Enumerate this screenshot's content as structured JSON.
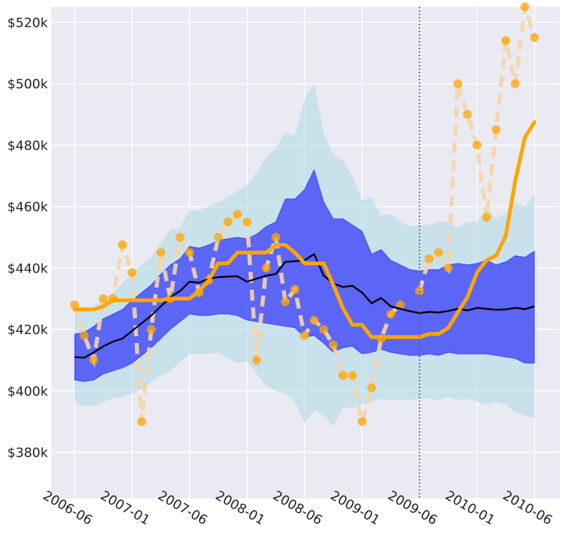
{
  "chart_data": {
    "type": "line",
    "title": "",
    "xlabel": "",
    "ylabel": "",
    "ylim": [
      365000,
      525000
    ],
    "y_ticks": [
      {
        "value": 380000,
        "label": "$380k"
      },
      {
        "value": 400000,
        "label": "$400k"
      },
      {
        "value": 420000,
        "label": "$420k"
      },
      {
        "value": 440000,
        "label": "$440k"
      },
      {
        "value": 460000,
        "label": "$460k"
      },
      {
        "value": 480000,
        "label": "$480k"
      },
      {
        "value": 500000,
        "label": "$500k"
      },
      {
        "value": 520000,
        "label": "$520k"
      }
    ],
    "x_ticks": [
      {
        "index": 0,
        "label": "2006-06"
      },
      {
        "index": 6,
        "label": "2007-01"
      },
      {
        "index": 12,
        "label": "2007-06"
      },
      {
        "index": 18,
        "label": "2008-01"
      },
      {
        "index": 24,
        "label": "2008-06"
      },
      {
        "index": 30,
        "label": "2009-01"
      },
      {
        "index": 36,
        "label": "2009-06"
      },
      {
        "index": 42,
        "label": "2010-01"
      },
      {
        "index": 48,
        "label": "2010-06"
      }
    ],
    "forecast_start_index": 36,
    "series": [
      {
        "name": "observed",
        "style": "dashed-markers",
        "color": "#FFA500",
        "values": [
          428000,
          418000,
          410000,
          430000,
          430000,
          447500,
          438500,
          390000,
          420000,
          445000,
          430000,
          450000,
          445000,
          432000,
          436000,
          450000,
          455000,
          457500,
          455000,
          410000,
          440000,
          450000,
          429000,
          433000,
          418000,
          423000,
          420000,
          415000,
          405000,
          405000,
          390000,
          401000,
          417000,
          425000,
          428000,
          null,
          432500,
          443000,
          445000,
          440000,
          500000,
          490000,
          480000,
          456500,
          485000,
          514000,
          500000,
          525000,
          515000
        ]
      },
      {
        "name": "rolling-mean",
        "style": "line-thick",
        "color": "#FFA500",
        "values": [
          426500,
          426500,
          426500,
          427500,
          429500,
          429500,
          429500,
          429500,
          429500,
          429500,
          430000,
          430000,
          430000,
          432500,
          436000,
          441500,
          441500,
          445000,
          445000,
          445000,
          445000,
          447500,
          447500,
          445000,
          441500,
          441500,
          441500,
          434500,
          427000,
          421500,
          421500,
          417500,
          417500,
          417500,
          417500,
          417500,
          417500,
          418500,
          418500,
          420500,
          425500,
          430500,
          438500,
          442500,
          444000,
          450500,
          468500,
          482500,
          487500
        ]
      },
      {
        "name": "prediction-mean",
        "style": "line",
        "color": "#000000",
        "values": [
          411000,
          410800,
          412500,
          414500,
          416000,
          417000,
          419500,
          422000,
          424500,
          427500,
          430500,
          432500,
          435500,
          435200,
          436500,
          437000,
          437200,
          437300,
          435500,
          436500,
          437500,
          438000,
          442000,
          442200,
          442500,
          444500,
          437500,
          435000,
          433800,
          434200,
          432000,
          428500,
          430200,
          427500,
          426700,
          425900,
          425300,
          425700,
          425500,
          426000,
          426700,
          426200,
          427000,
          426700,
          426400,
          426500,
          427000,
          426600,
          427500
        ]
      }
    ],
    "bands": [
      {
        "name": "outer-interval",
        "color": "#ADD8E6",
        "lower": [
          396500,
          395000,
          395000,
          396500,
          397500,
          398000,
          399000,
          400500,
          403000,
          405000,
          406500,
          409500,
          412000,
          412000,
          412000,
          412500,
          410500,
          409000,
          409500,
          405500,
          401500,
          400000,
          399000,
          396500,
          389500,
          393500,
          392000,
          388500,
          394500,
          394500,
          395500,
          396500,
          397500,
          397000,
          397000,
          397000,
          397500,
          397500,
          397000,
          398000,
          397000,
          397500,
          396500,
          395500,
          396500,
          395500,
          393000,
          392000,
          391000
        ],
        "upper": [
          426000,
          426500,
          427500,
          430000,
          432000,
          435000,
          438500,
          441000,
          443500,
          448000,
          452500,
          453000,
          459000,
          458500,
          460000,
          461500,
          463000,
          465000,
          467000,
          471000,
          476000,
          479000,
          484000,
          483000,
          495000,
          500000,
          484000,
          477000,
          475000,
          470000,
          462000,
          463000,
          457000,
          457500,
          455000,
          453500,
          454000,
          454000,
          455000,
          455000,
          453000,
          455000,
          455000,
          459500,
          456000,
          458000,
          461000,
          460000,
          464000
        ]
      },
      {
        "name": "inner-interval",
        "color": "#0000FF",
        "lower": [
          403500,
          403000,
          403500,
          405500,
          406500,
          407500,
          409000,
          411500,
          414000,
          417000,
          420000,
          422500,
          425000,
          424500,
          424500,
          425000,
          425000,
          424500,
          423000,
          422500,
          422000,
          421500,
          421000,
          420500,
          417500,
          418000,
          415500,
          412500,
          414000,
          414500,
          412000,
          412500,
          413500,
          412500,
          412000,
          411500,
          411500,
          412000,
          411500,
          412500,
          412000,
          412000,
          412000,
          412000,
          411500,
          411000,
          410500,
          409000,
          409000
        ],
        "upper": [
          418500,
          419000,
          421000,
          423500,
          425000,
          426500,
          429500,
          432000,
          434500,
          438000,
          441000,
          443000,
          447000,
          446500,
          447500,
          449000,
          449500,
          450000,
          449500,
          451000,
          453500,
          455000,
          462500,
          462500,
          465500,
          472000,
          461500,
          456000,
          456000,
          454000,
          452000,
          444500,
          446000,
          442500,
          441000,
          439500,
          439000,
          439500,
          439500,
          441000,
          441500,
          441000,
          441500,
          442500,
          441000,
          442000,
          444000,
          443500,
          445500
        ]
      }
    ]
  }
}
